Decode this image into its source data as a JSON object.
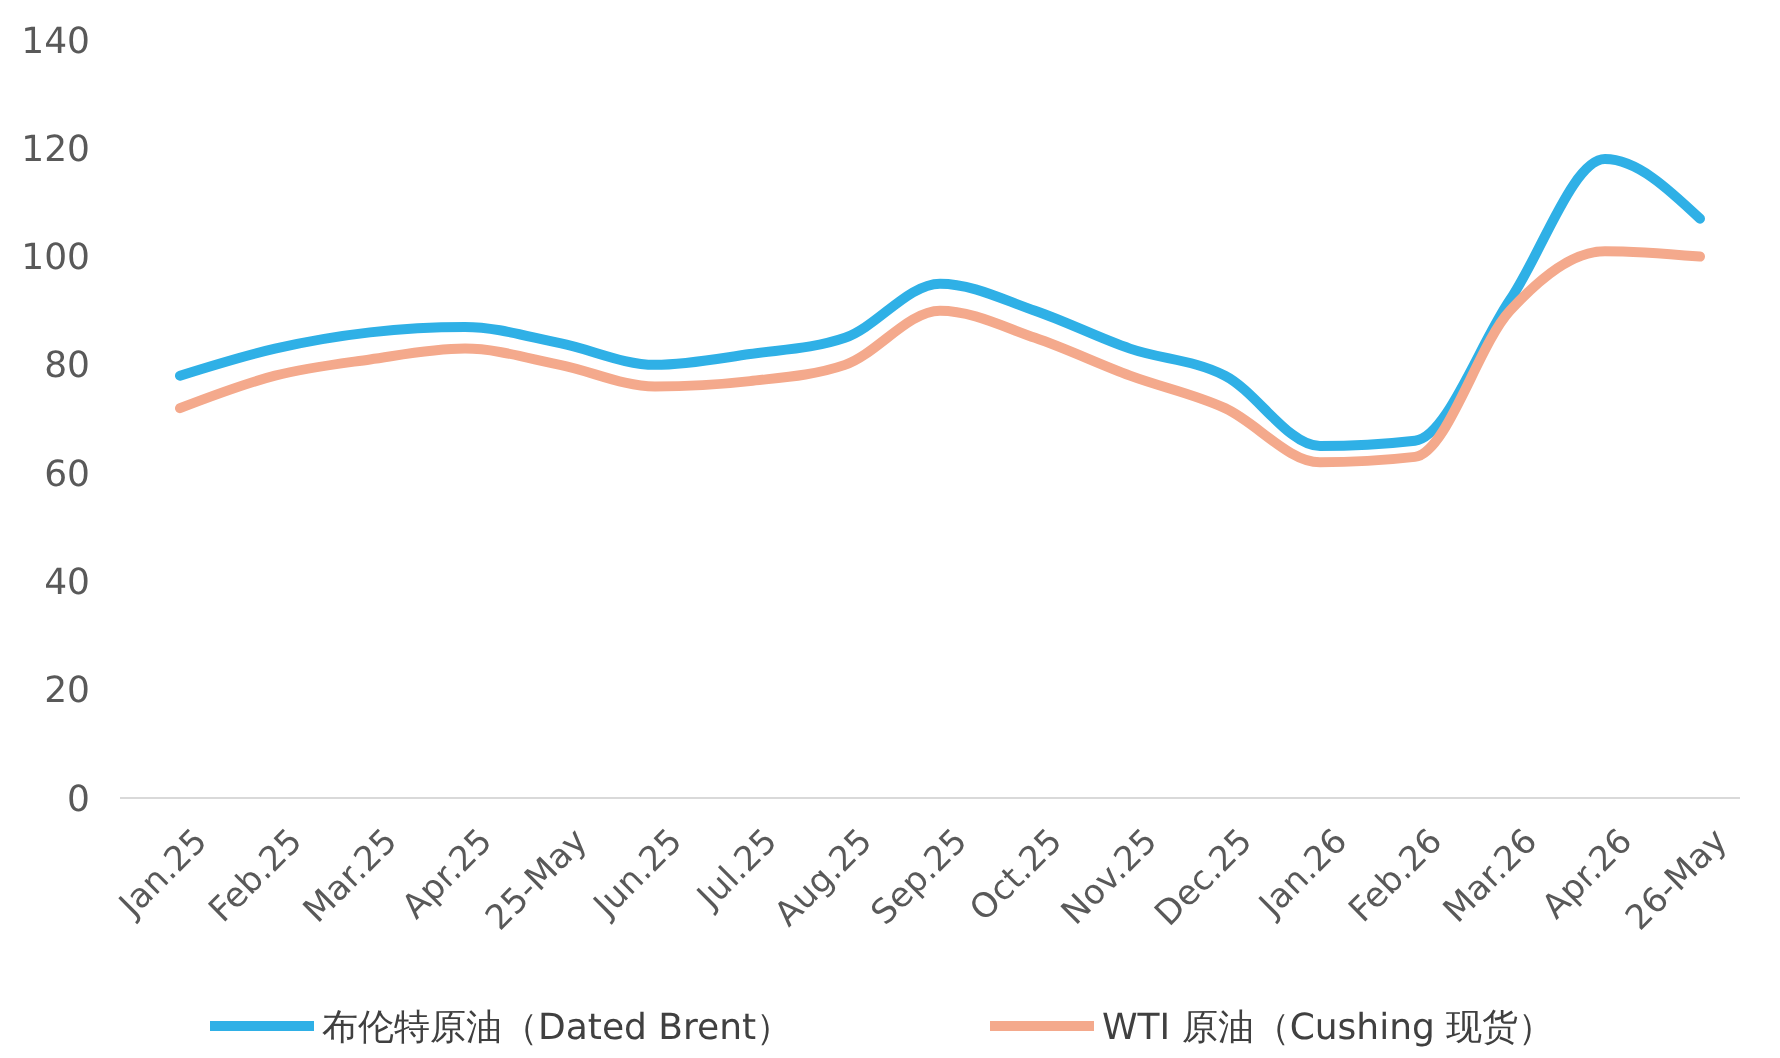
{
  "chart_data": {
    "type": "line",
    "categories": [
      "Jan.25",
      "Feb.25",
      "Mar.25",
      "Apr.25",
      "25-May",
      "Jun.25",
      "Jul.25",
      "Aug.25",
      "Sep.25",
      "Oct.25",
      "Nov.25",
      "Dec.25",
      "Jan.26",
      "Feb.26",
      "Mar.26",
      "Apr.26",
      "26-May"
    ],
    "series": [
      {
        "name": "布伦特原油（Dated Brent）",
        "color": "#2fb0e6",
        "values": [
          78,
          83,
          86,
          87,
          84,
          80,
          82,
          85,
          95,
          90,
          83,
          78,
          65,
          66,
          92,
          118,
          107
        ]
      },
      {
        "name": "WTI 原油（Cushing 现货）",
        "color": "#f4a98c",
        "values": [
          72,
          78,
          81,
          83,
          80,
          76,
          77,
          80,
          90,
          85,
          78,
          72,
          62,
          63,
          90,
          101,
          100
        ]
      }
    ],
    "ylim": [
      0,
      140
    ],
    "yticks": [
      0,
      20,
      40,
      60,
      80,
      100,
      120,
      140
    ],
    "legend": "bottom",
    "grid": false
  }
}
